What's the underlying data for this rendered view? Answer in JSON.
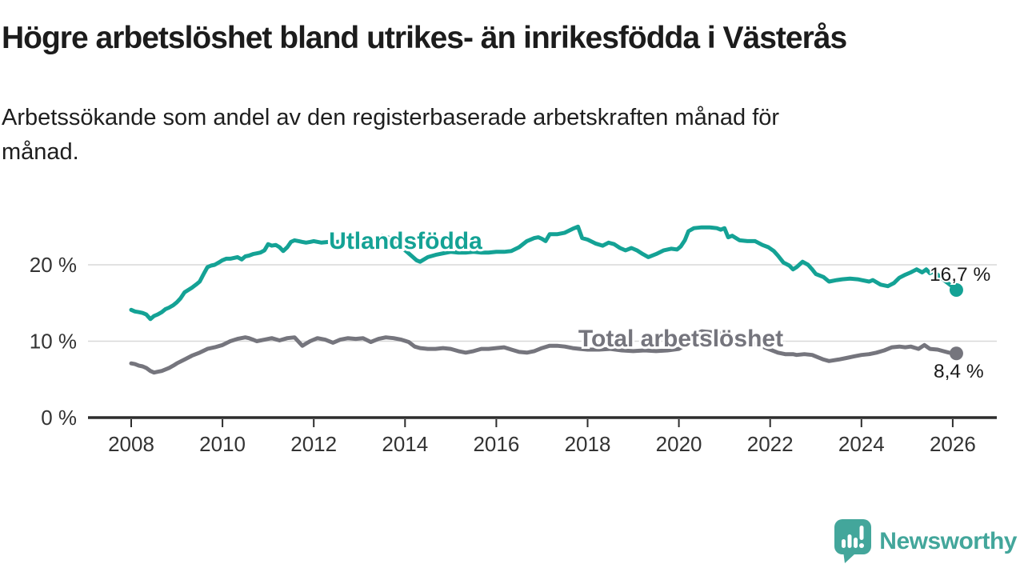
{
  "header": {
    "title": "Högre arbetslöshet bland utrikes- än inrikesfödda i Västerås",
    "subtitle_lines": [
      "Arbetssökande som andel av den registerbaserade arbetskraften månad för",
      "månad."
    ]
  },
  "chart_data": {
    "type": "line",
    "title": "Högre arbetslöshet bland utrikes- än inrikesfödda i Västerås",
    "subtitle": "Arbetssökande som andel av den registerbaserade arbetskraften månad för månad.",
    "xlabel": "",
    "ylabel": "",
    "x_unit": "year (monthly data)",
    "x_range": [
      2008.0,
      2026.3
    ],
    "ylim": [
      0,
      26
    ],
    "grid": "horizontal",
    "legend_position": "inline-labels",
    "x_ticks": [
      2008,
      2010,
      2012,
      2014,
      2016,
      2018,
      2020,
      2022,
      2024,
      2026
    ],
    "y_ticks": [
      {
        "value": 0,
        "label": "0 %"
      },
      {
        "value": 10,
        "label": "10 %"
      },
      {
        "value": 20,
        "label": "20 %"
      }
    ],
    "series": [
      {
        "name": "Utlandsfödda",
        "color": "#14a295",
        "end_label": "16,7 %",
        "last_value": 16.7,
        "points": [
          [
            2008.0,
            14.1
          ],
          [
            2008.08,
            13.9
          ],
          [
            2008.17,
            13.8
          ],
          [
            2008.25,
            13.7
          ],
          [
            2008.33,
            13.5
          ],
          [
            2008.42,
            12.9
          ],
          [
            2008.5,
            13.3
          ],
          [
            2008.58,
            13.5
          ],
          [
            2008.67,
            13.8
          ],
          [
            2008.75,
            14.2
          ],
          [
            2008.83,
            14.4
          ],
          [
            2008.92,
            14.7
          ],
          [
            2009.0,
            15.1
          ],
          [
            2009.08,
            15.6
          ],
          [
            2009.17,
            16.4
          ],
          [
            2009.25,
            16.7
          ],
          [
            2009.33,
            17.0
          ],
          [
            2009.42,
            17.4
          ],
          [
            2009.5,
            17.8
          ],
          [
            2009.58,
            18.7
          ],
          [
            2009.67,
            19.7
          ],
          [
            2009.75,
            19.9
          ],
          [
            2009.83,
            20.0
          ],
          [
            2009.92,
            20.3
          ],
          [
            2010.0,
            20.6
          ],
          [
            2010.08,
            20.8
          ],
          [
            2010.17,
            20.8
          ],
          [
            2010.25,
            20.9
          ],
          [
            2010.33,
            21.0
          ],
          [
            2010.42,
            20.7
          ],
          [
            2010.5,
            21.1
          ],
          [
            2010.58,
            21.2
          ],
          [
            2010.67,
            21.4
          ],
          [
            2010.75,
            21.5
          ],
          [
            2010.83,
            21.6
          ],
          [
            2010.92,
            21.9
          ],
          [
            2011.0,
            22.7
          ],
          [
            2011.08,
            22.5
          ],
          [
            2011.17,
            22.6
          ],
          [
            2011.25,
            22.3
          ],
          [
            2011.33,
            21.8
          ],
          [
            2011.42,
            22.3
          ],
          [
            2011.5,
            23.0
          ],
          [
            2011.58,
            23.2
          ],
          [
            2011.67,
            23.1
          ],
          [
            2011.75,
            23.0
          ],
          [
            2011.83,
            22.9
          ],
          [
            2011.92,
            23.0
          ],
          [
            2012.0,
            23.1
          ],
          [
            2012.17,
            22.9
          ],
          [
            2012.33,
            23.0
          ],
          [
            2012.5,
            23.0
          ],
          [
            2012.67,
            23.1
          ],
          [
            2012.83,
            23.0
          ],
          [
            2013.0,
            23.1
          ],
          [
            2013.17,
            23.2
          ],
          [
            2013.33,
            23.4
          ],
          [
            2013.5,
            23.8
          ],
          [
            2013.67,
            23.5
          ],
          [
            2013.83,
            22.9
          ],
          [
            2013.92,
            22.3
          ],
          [
            2014.08,
            21.5
          ],
          [
            2014.25,
            20.6
          ],
          [
            2014.33,
            20.4
          ],
          [
            2014.5,
            21.0
          ],
          [
            2014.67,
            21.3
          ],
          [
            2014.83,
            21.5
          ],
          [
            2015.0,
            21.7
          ],
          [
            2015.17,
            21.6
          ],
          [
            2015.33,
            21.6
          ],
          [
            2015.5,
            21.7
          ],
          [
            2015.67,
            21.6
          ],
          [
            2015.83,
            21.6
          ],
          [
            2016.0,
            21.7
          ],
          [
            2016.17,
            21.7
          ],
          [
            2016.33,
            21.8
          ],
          [
            2016.5,
            22.3
          ],
          [
            2016.67,
            23.1
          ],
          [
            2016.83,
            23.5
          ],
          [
            2016.92,
            23.6
          ],
          [
            2017.0,
            23.4
          ],
          [
            2017.08,
            23.1
          ],
          [
            2017.17,
            24.0
          ],
          [
            2017.33,
            24.0
          ],
          [
            2017.5,
            24.2
          ],
          [
            2017.67,
            24.7
          ],
          [
            2017.79,
            25.0
          ],
          [
            2017.88,
            23.5
          ],
          [
            2018.0,
            23.3
          ],
          [
            2018.17,
            22.8
          ],
          [
            2018.33,
            22.5
          ],
          [
            2018.46,
            22.9
          ],
          [
            2018.58,
            22.7
          ],
          [
            2018.71,
            22.2
          ],
          [
            2018.83,
            21.9
          ],
          [
            2018.96,
            22.2
          ],
          [
            2019.08,
            21.9
          ],
          [
            2019.21,
            21.4
          ],
          [
            2019.33,
            21.0
          ],
          [
            2019.5,
            21.4
          ],
          [
            2019.67,
            21.9
          ],
          [
            2019.83,
            22.1
          ],
          [
            2019.96,
            22.0
          ],
          [
            2020.04,
            22.4
          ],
          [
            2020.13,
            23.2
          ],
          [
            2020.21,
            24.4
          ],
          [
            2020.33,
            24.8
          ],
          [
            2020.5,
            24.9
          ],
          [
            2020.67,
            24.9
          ],
          [
            2020.83,
            24.8
          ],
          [
            2020.92,
            24.6
          ],
          [
            2021.0,
            24.8
          ],
          [
            2021.08,
            23.6
          ],
          [
            2021.17,
            23.8
          ],
          [
            2021.33,
            23.2
          ],
          [
            2021.5,
            23.1
          ],
          [
            2021.67,
            23.1
          ],
          [
            2021.83,
            22.6
          ],
          [
            2021.96,
            22.3
          ],
          [
            2022.08,
            21.8
          ],
          [
            2022.17,
            21.2
          ],
          [
            2022.29,
            20.3
          ],
          [
            2022.42,
            19.9
          ],
          [
            2022.5,
            19.4
          ],
          [
            2022.58,
            19.7
          ],
          [
            2022.71,
            20.4
          ],
          [
            2022.83,
            20.0
          ],
          [
            2022.92,
            19.4
          ],
          [
            2023.0,
            18.8
          ],
          [
            2023.17,
            18.4
          ],
          [
            2023.29,
            17.8
          ],
          [
            2023.46,
            18.0
          ],
          [
            2023.58,
            18.1
          ],
          [
            2023.75,
            18.2
          ],
          [
            2023.92,
            18.1
          ],
          [
            2024.0,
            18.0
          ],
          [
            2024.17,
            17.8
          ],
          [
            2024.25,
            18.0
          ],
          [
            2024.42,
            17.4
          ],
          [
            2024.58,
            17.2
          ],
          [
            2024.71,
            17.6
          ],
          [
            2024.83,
            18.3
          ],
          [
            2024.96,
            18.7
          ],
          [
            2025.08,
            19.0
          ],
          [
            2025.21,
            19.4
          ],
          [
            2025.33,
            19.0
          ],
          [
            2025.42,
            19.4
          ],
          [
            2025.5,
            18.9
          ],
          [
            2025.58,
            19.1
          ],
          [
            2025.71,
            18.5
          ],
          [
            2025.83,
            17.9
          ],
          [
            2025.96,
            17.3
          ],
          [
            2026.08,
            16.7
          ]
        ]
      },
      {
        "name": "Total arbetslöshet",
        "color": "#75757d",
        "end_label": "8,4 %",
        "last_value": 8.4,
        "points": [
          [
            2008.0,
            7.1
          ],
          [
            2008.08,
            7.0
          ],
          [
            2008.17,
            6.8
          ],
          [
            2008.25,
            6.7
          ],
          [
            2008.33,
            6.5
          ],
          [
            2008.42,
            6.1
          ],
          [
            2008.5,
            5.9
          ],
          [
            2008.58,
            6.0
          ],
          [
            2008.67,
            6.1
          ],
          [
            2008.75,
            6.3
          ],
          [
            2008.83,
            6.5
          ],
          [
            2008.92,
            6.8
          ],
          [
            2009.0,
            7.1
          ],
          [
            2009.17,
            7.6
          ],
          [
            2009.33,
            8.1
          ],
          [
            2009.5,
            8.5
          ],
          [
            2009.67,
            9.0
          ],
          [
            2009.83,
            9.2
          ],
          [
            2010.0,
            9.5
          ],
          [
            2010.17,
            10.0
          ],
          [
            2010.33,
            10.3
          ],
          [
            2010.5,
            10.5
          ],
          [
            2010.58,
            10.4
          ],
          [
            2010.67,
            10.2
          ],
          [
            2010.75,
            10.0
          ],
          [
            2010.92,
            10.2
          ],
          [
            2011.08,
            10.4
          ],
          [
            2011.25,
            10.1
          ],
          [
            2011.42,
            10.4
          ],
          [
            2011.58,
            10.5
          ],
          [
            2011.75,
            9.4
          ],
          [
            2011.92,
            10.0
          ],
          [
            2012.08,
            10.4
          ],
          [
            2012.25,
            10.2
          ],
          [
            2012.42,
            9.8
          ],
          [
            2012.58,
            10.2
          ],
          [
            2012.75,
            10.4
          ],
          [
            2012.92,
            10.3
          ],
          [
            2013.08,
            10.4
          ],
          [
            2013.25,
            9.9
          ],
          [
            2013.42,
            10.3
          ],
          [
            2013.58,
            10.5
          ],
          [
            2013.75,
            10.4
          ],
          [
            2013.92,
            10.2
          ],
          [
            2014.08,
            9.9
          ],
          [
            2014.21,
            9.3
          ],
          [
            2014.33,
            9.1
          ],
          [
            2014.5,
            9.0
          ],
          [
            2014.67,
            9.0
          ],
          [
            2014.83,
            9.1
          ],
          [
            2015.0,
            9.0
          ],
          [
            2015.17,
            8.7
          ],
          [
            2015.33,
            8.5
          ],
          [
            2015.5,
            8.7
          ],
          [
            2015.67,
            9.0
          ],
          [
            2015.83,
            9.0
          ],
          [
            2016.0,
            9.1
          ],
          [
            2016.17,
            9.2
          ],
          [
            2016.33,
            8.9
          ],
          [
            2016.5,
            8.6
          ],
          [
            2016.67,
            8.5
          ],
          [
            2016.83,
            8.7
          ],
          [
            2017.0,
            9.1
          ],
          [
            2017.17,
            9.4
          ],
          [
            2017.33,
            9.4
          ],
          [
            2017.5,
            9.3
          ],
          [
            2017.67,
            9.1
          ],
          [
            2017.83,
            9.0
          ],
          [
            2018.0,
            8.9
          ],
          [
            2018.25,
            8.9
          ],
          [
            2018.5,
            9.0
          ],
          [
            2018.75,
            8.8
          ],
          [
            2019.0,
            8.7
          ],
          [
            2019.25,
            8.8
          ],
          [
            2019.5,
            8.7
          ],
          [
            2019.75,
            8.8
          ],
          [
            2020.0,
            9.0
          ],
          [
            2020.17,
            9.6
          ],
          [
            2020.33,
            10.8
          ],
          [
            2020.5,
            11.3
          ],
          [
            2020.67,
            11.2
          ],
          [
            2020.83,
            11.1
          ],
          [
            2021.0,
            10.9
          ],
          [
            2021.17,
            10.6
          ],
          [
            2021.33,
            10.2
          ],
          [
            2021.5,
            9.9
          ],
          [
            2021.67,
            9.6
          ],
          [
            2021.83,
            9.3
          ],
          [
            2022.0,
            8.9
          ],
          [
            2022.17,
            8.5
          ],
          [
            2022.33,
            8.3
          ],
          [
            2022.5,
            8.3
          ],
          [
            2022.58,
            8.2
          ],
          [
            2022.75,
            8.3
          ],
          [
            2022.92,
            8.2
          ],
          [
            2023.0,
            8.0
          ],
          [
            2023.17,
            7.6
          ],
          [
            2023.29,
            7.4
          ],
          [
            2023.5,
            7.6
          ],
          [
            2023.67,
            7.8
          ],
          [
            2023.83,
            8.0
          ],
          [
            2024.0,
            8.2
          ],
          [
            2024.17,
            8.3
          ],
          [
            2024.33,
            8.5
          ],
          [
            2024.5,
            8.8
          ],
          [
            2024.67,
            9.2
          ],
          [
            2024.83,
            9.3
          ],
          [
            2024.96,
            9.2
          ],
          [
            2025.08,
            9.3
          ],
          [
            2025.25,
            9.0
          ],
          [
            2025.38,
            9.5
          ],
          [
            2025.5,
            9.0
          ],
          [
            2025.67,
            8.9
          ],
          [
            2025.79,
            8.7
          ],
          [
            2025.92,
            8.5
          ],
          [
            2026.08,
            8.4
          ]
        ]
      }
    ],
    "colors": {
      "gridline": "#d8d8d8",
      "axis": "#2d2d2d",
      "tick_text": "#333333",
      "value_label_text": "#1b1b1b"
    }
  },
  "branding": {
    "name": "Newsworthy",
    "color": "#43a69b"
  }
}
